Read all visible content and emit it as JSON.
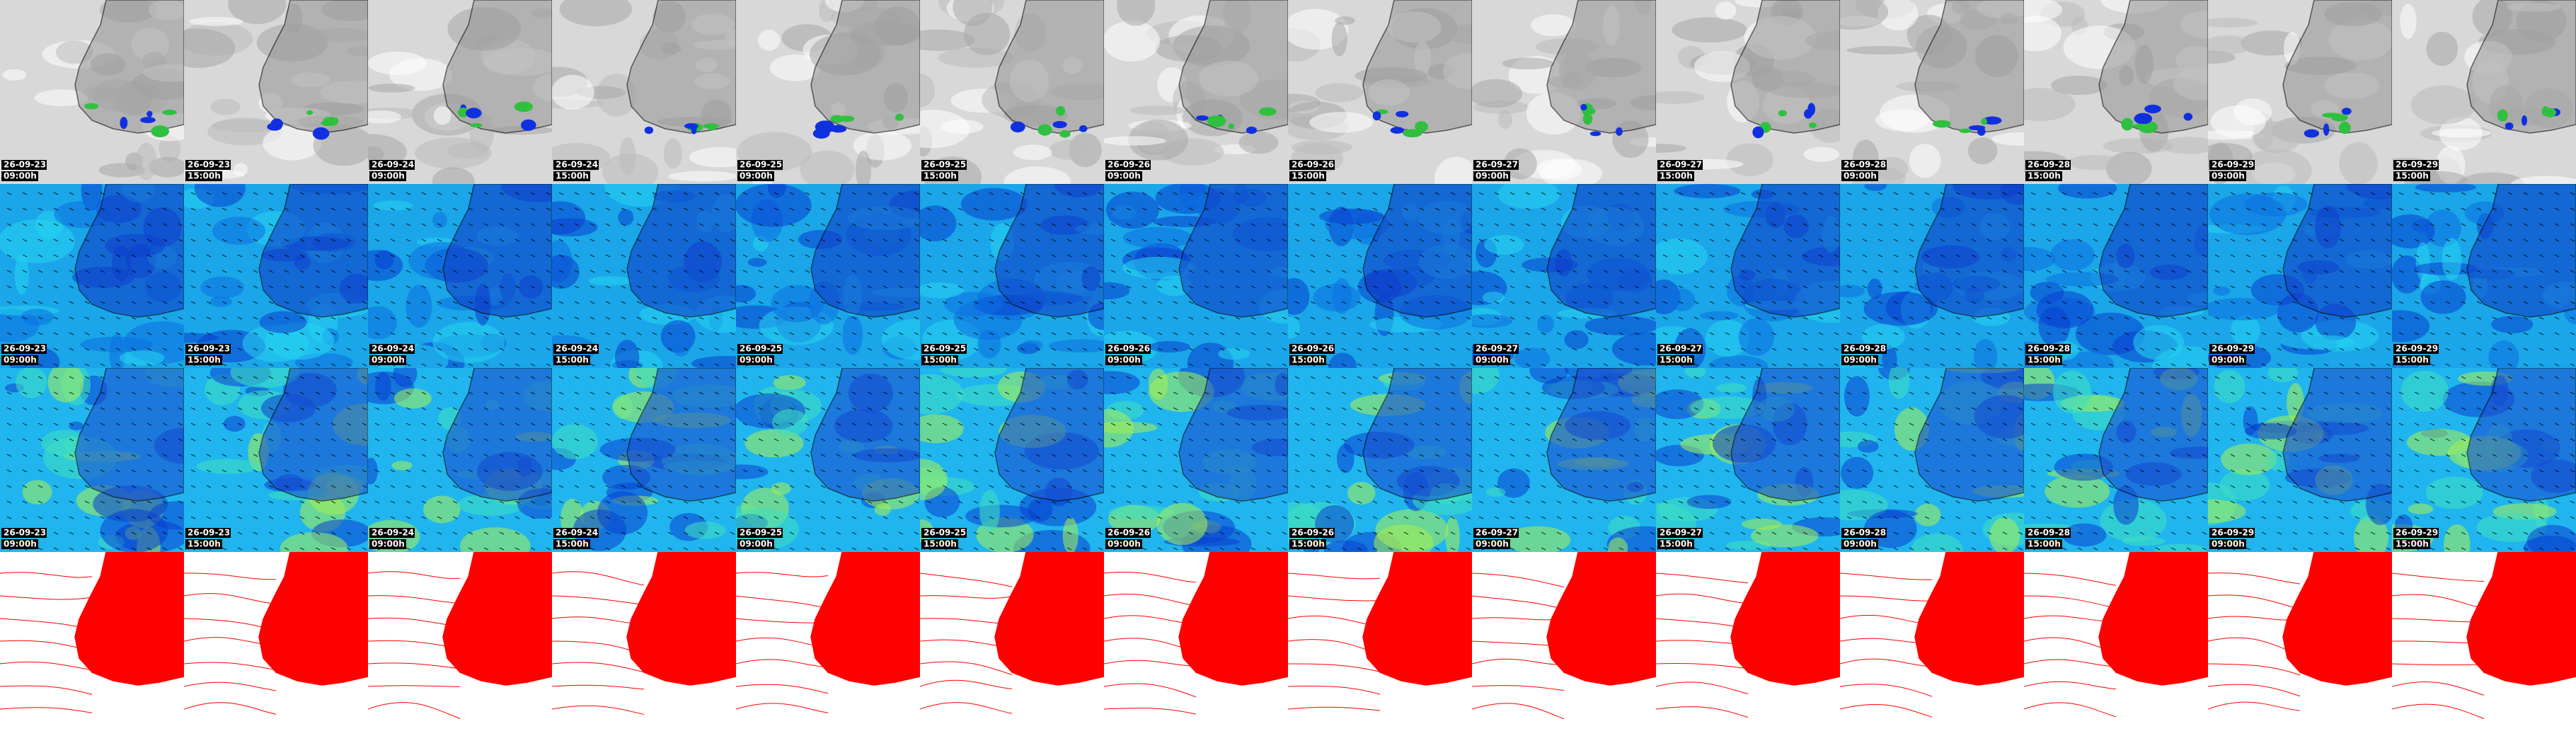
{
  "columns": [
    {
      "date": "26-09-23",
      "time": "09:00h"
    },
    {
      "date": "26-09-23",
      "time": "15:00h"
    },
    {
      "date": "26-09-24",
      "time": "09:00h"
    },
    {
      "date": "26-09-24",
      "time": "15:00h"
    },
    {
      "date": "26-09-25",
      "time": "09:00h"
    },
    {
      "date": "26-09-25",
      "time": "15:00h"
    },
    {
      "date": "26-09-26",
      "time": "09:00h"
    },
    {
      "date": "26-09-26",
      "time": "15:00h"
    },
    {
      "date": "26-09-27",
      "time": "09:00h"
    },
    {
      "date": "26-09-27",
      "time": "15:00h"
    },
    {
      "date": "26-09-28",
      "time": "09:00h"
    },
    {
      "date": "26-09-28",
      "time": "15:00h"
    },
    {
      "date": "26-09-29",
      "time": "09:00h"
    },
    {
      "date": "26-09-29",
      "time": "15:00h"
    }
  ]
}
